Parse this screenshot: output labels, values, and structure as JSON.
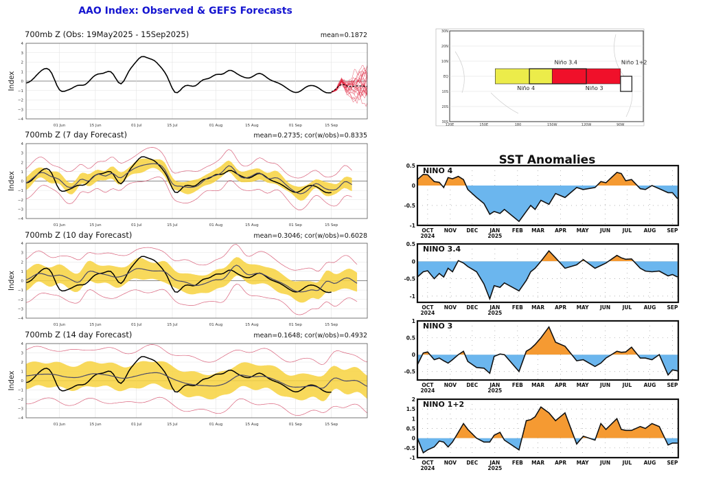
{
  "title": "AAO Index: Observed & GEFS Forecasts",
  "colors": {
    "title": "#1515d0",
    "observed": "#000000",
    "forecast_mean": "#4a4a6a",
    "ensemble": "#e0203a",
    "band": "#f7d23e",
    "envelope": "#d9607a",
    "sst_warm": "#f59a32",
    "sst_cool": "#6bb6ee",
    "nino4_box": "#ecec4a",
    "nino3_box": "#f0102a"
  },
  "chart_data": [
    {
      "type": "line",
      "title": "700mb Z (Obs: 19May2025 - 15Sep2025)",
      "stat": "mean=0.1872",
      "ylabel": "Index",
      "xlim": [
        "2025-05-19",
        "2025-09-29"
      ],
      "ylim": [
        -4,
        4
      ],
      "yticks": [
        4,
        3,
        2,
        1,
        0,
        -1,
        -2,
        -3,
        -4
      ],
      "xticks": [
        {
          "date": "2025-06-01",
          "label": "01 Jun"
        },
        {
          "date": "2025-06-15",
          "label": "15 Jun"
        },
        {
          "date": "2025-07-01",
          "label": "01 Jul"
        },
        {
          "date": "2025-07-15",
          "label": "15 Jul"
        },
        {
          "date": "2025-08-01",
          "label": "01 Aug"
        },
        {
          "date": "2025-08-15",
          "label": "15 Aug"
        },
        {
          "date": "2025-09-01",
          "label": "01 Sep"
        },
        {
          "date": "2025-09-15",
          "label": "15 Sep"
        }
      ],
      "grid": true,
      "observed": [
        [
          "2025-05-19",
          -0.2
        ],
        [
          "2025-05-20",
          -0.3
        ],
        [
          "2025-05-24",
          0.9
        ],
        [
          "2025-05-26",
          1.4
        ],
        [
          "2025-05-28",
          1.4
        ],
        [
          "2025-05-29",
          1.1
        ],
        [
          "2025-05-31",
          -0.6
        ],
        [
          "2025-06-01",
          -1.3
        ],
        [
          "2025-06-05",
          -0.85
        ],
        [
          "2025-06-06",
          -0.85
        ],
        [
          "2025-06-08",
          -0.3
        ],
        [
          "2025-06-11",
          -0.6
        ],
        [
          "2025-06-13",
          0.2
        ],
        [
          "2025-06-16",
          0.9
        ],
        [
          "2025-06-17",
          0.75
        ],
        [
          "2025-06-18",
          0.7
        ],
        [
          "2025-06-21",
          1.3
        ],
        [
          "2025-06-23",
          0.3
        ],
        [
          "2025-06-25",
          -0.85
        ],
        [
          "2025-06-28",
          1.2
        ],
        [
          "2025-07-01",
          2.0
        ],
        [
          "2025-07-03",
          2.9
        ],
        [
          "2025-07-05",
          2.4
        ],
        [
          "2025-07-08",
          2.3
        ],
        [
          "2025-07-11",
          1.3
        ],
        [
          "2025-07-13",
          0.7
        ],
        [
          "2025-07-16",
          -1.7
        ],
        [
          "2025-07-20",
          -0.3
        ],
        [
          "2025-07-24",
          -0.7
        ],
        [
          "2025-07-27",
          0.35
        ],
        [
          "2025-07-29",
          0.1
        ],
        [
          "2025-08-01",
          0.85
        ],
        [
          "2025-08-04",
          0.55
        ],
        [
          "2025-08-06",
          1.4
        ],
        [
          "2025-08-10",
          0.6
        ],
        [
          "2025-08-14",
          0.2
        ],
        [
          "2025-08-18",
          1.0
        ],
        [
          "2025-08-22",
          0.1
        ],
        [
          "2025-08-26",
          -0.25
        ],
        [
          "2025-08-31",
          -1.2
        ],
        [
          "2025-09-02",
          -1.3
        ],
        [
          "2025-09-06",
          -0.4
        ],
        [
          "2025-09-09",
          -0.5
        ],
        [
          "2025-09-13",
          -1.35
        ],
        [
          "2025-09-15",
          -1.2
        ]
      ],
      "ensemble_mean": [
        [
          "2025-09-15",
          -1.2
        ],
        [
          "2025-09-17",
          -0.9
        ],
        [
          "2025-09-19",
          0.0
        ],
        [
          "2025-09-21",
          -0.7
        ],
        [
          "2025-09-24",
          -0.5
        ],
        [
          "2025-09-27",
          -0.5
        ],
        [
          "2025-09-29",
          -0.6
        ]
      ],
      "ensemble_spread": 2.0
    },
    {
      "type": "line",
      "title": "700mb Z (7 day Forecast)",
      "stat": "mean=0.2735; cor(w/obs)=0.8335",
      "ylabel": "Index",
      "xlim": [
        "2025-05-19",
        "2025-09-29"
      ],
      "ylim": [
        -4,
        4
      ],
      "band_halfwidth": 0.6,
      "envelope_halfwidth": 1.5,
      "forecast_mean": [
        [
          "2025-05-19",
          -0.3
        ],
        [
          "2025-05-25",
          1.1
        ],
        [
          "2025-05-29",
          0.4
        ],
        [
          "2025-06-01",
          0.3
        ],
        [
          "2025-06-04",
          -0.8
        ],
        [
          "2025-06-08",
          -0.5
        ],
        [
          "2025-06-09",
          0.7
        ],
        [
          "2025-06-12",
          -0.3
        ],
        [
          "2025-06-16",
          1.0
        ],
        [
          "2025-06-19",
          0.3
        ],
        [
          "2025-06-22",
          1.2
        ],
        [
          "2025-06-24",
          0.0
        ],
        [
          "2025-06-27",
          0.8
        ],
        [
          "2025-07-01",
          1.5
        ],
        [
          "2025-07-05",
          1.8
        ],
        [
          "2025-07-09",
          1.9
        ],
        [
          "2025-07-12",
          1.5
        ],
        [
          "2025-07-15",
          -0.6
        ],
        [
          "2025-07-18",
          -0.5
        ],
        [
          "2025-07-21",
          -0.7
        ],
        [
          "2025-07-25",
          -0.6
        ],
        [
          "2025-07-28",
          0.3
        ],
        [
          "2025-08-01",
          0.6
        ],
        [
          "2025-08-04",
          0.9
        ],
        [
          "2025-08-06",
          2.1
        ],
        [
          "2025-08-08",
          1.2
        ],
        [
          "2025-08-11",
          0.2
        ],
        [
          "2025-08-15",
          0.5
        ],
        [
          "2025-08-18",
          1.1
        ],
        [
          "2025-08-21",
          0.1
        ],
        [
          "2025-08-25",
          0.5
        ],
        [
          "2025-08-29",
          -0.6
        ],
        [
          "2025-09-01",
          -1.2
        ],
        [
          "2025-09-03",
          -1.5
        ],
        [
          "2025-09-06",
          -1.0
        ],
        [
          "2025-09-09",
          0.0
        ],
        [
          "2025-09-12",
          -0.8
        ],
        [
          "2025-09-15",
          -1.0
        ],
        [
          "2025-09-18",
          -0.9
        ],
        [
          "2025-09-20",
          0.3
        ],
        [
          "2025-09-23",
          -0.5
        ]
      ]
    },
    {
      "type": "line",
      "title": "700mb Z (10 day Forecast)",
      "stat": "mean=0.3046; cor(w/obs)=0.6028",
      "ylabel": "Index",
      "xlim": [
        "2025-05-19",
        "2025-09-29"
      ],
      "ylim": [
        -4,
        4
      ],
      "band_halfwidth": 1.0,
      "envelope_halfwidth": 2.2,
      "forecast_mean": [
        [
          "2025-05-19",
          0.0
        ],
        [
          "2025-05-24",
          0.9
        ],
        [
          "2025-05-29",
          0.4
        ],
        [
          "2025-06-01",
          0.7
        ],
        [
          "2025-06-05",
          0.2
        ],
        [
          "2025-06-09",
          -0.4
        ],
        [
          "2025-06-12",
          1.2
        ],
        [
          "2025-06-16",
          0.8
        ],
        [
          "2025-06-20",
          0.6
        ],
        [
          "2025-06-23",
          0.3
        ],
        [
          "2025-06-27",
          0.6
        ],
        [
          "2025-07-01",
          1.4
        ],
        [
          "2025-07-04",
          1.2
        ],
        [
          "2025-07-08",
          1.0
        ],
        [
          "2025-07-12",
          1.1
        ],
        [
          "2025-07-16",
          0.0
        ],
        [
          "2025-07-20",
          -0.1
        ],
        [
          "2025-07-24",
          -0.6
        ],
        [
          "2025-07-28",
          -0.3
        ],
        [
          "2025-08-01",
          0.2
        ],
        [
          "2025-08-04",
          0.0
        ],
        [
          "2025-08-09",
          2.0
        ],
        [
          "2025-08-13",
          0.5
        ],
        [
          "2025-08-18",
          0.9
        ],
        [
          "2025-08-22",
          0.3
        ],
        [
          "2025-08-28",
          -0.4
        ],
        [
          "2025-09-01",
          -1.2
        ],
        [
          "2025-09-05",
          -1.2
        ],
        [
          "2025-09-08",
          -0.8
        ],
        [
          "2025-09-10",
          -1.4
        ],
        [
          "2025-09-13",
          0.3
        ],
        [
          "2025-09-16",
          -0.5
        ],
        [
          "2025-09-20",
          0.3
        ],
        [
          "2025-09-22",
          0.4
        ],
        [
          "2025-09-25",
          -0.4
        ]
      ]
    },
    {
      "type": "line",
      "title": "700mb Z (14 day Forecast)",
      "stat": "mean=0.1648; cor(w/obs)=0.4932",
      "ylabel": "Index",
      "xlim": [
        "2025-05-19",
        "2025-09-29"
      ],
      "ylim": [
        -4,
        4
      ],
      "band_halfwidth": 1.3,
      "envelope_halfwidth": 2.8,
      "forecast_mean": [
        [
          "2025-05-19",
          0.5
        ],
        [
          "2025-05-24",
          0.7
        ],
        [
          "2025-05-30",
          0.7
        ],
        [
          "2025-06-03",
          0.4
        ],
        [
          "2025-06-08",
          0.3
        ],
        [
          "2025-06-14",
          0.8
        ],
        [
          "2025-06-20",
          0.6
        ],
        [
          "2025-06-26",
          0.2
        ],
        [
          "2025-07-01",
          0.5
        ],
        [
          "2025-07-05",
          0.8
        ],
        [
          "2025-07-10",
          0.9
        ],
        [
          "2025-07-15",
          0.2
        ],
        [
          "2025-07-20",
          -0.3
        ],
        [
          "2025-07-25",
          -0.5
        ],
        [
          "2025-08-01",
          -0.6
        ],
        [
          "2025-08-05",
          -0.3
        ],
        [
          "2025-08-10",
          0.7
        ],
        [
          "2025-08-15",
          0.4
        ],
        [
          "2025-08-20",
          0.5
        ],
        [
          "2025-08-25",
          0.0
        ],
        [
          "2025-08-30",
          -0.7
        ],
        [
          "2025-09-03",
          -0.7
        ],
        [
          "2025-09-08",
          -0.5
        ],
        [
          "2025-09-12",
          -1.0
        ],
        [
          "2025-09-16",
          0.5
        ],
        [
          "2025-09-20",
          -0.1
        ],
        [
          "2025-09-25",
          0.1
        ],
        [
          "2025-09-29",
          -0.7
        ]
      ]
    },
    {
      "type": "map",
      "lat_labels": [
        "30N",
        "20N",
        "10N",
        "EQ",
        "10S",
        "20S",
        "30S"
      ],
      "lon_labels": [
        "120E",
        "150E",
        "180",
        "150W",
        "120W",
        "90W"
      ],
      "regions": [
        {
          "name": "Niño 4"
        },
        {
          "name": "Niño 3.4"
        },
        {
          "name": "Niño 3"
        },
        {
          "name": "Niño 1+2"
        }
      ]
    },
    {
      "type": "area",
      "title": "SST Anomalies",
      "xlim": [
        "2024-09-17",
        "2025-09-09"
      ],
      "xticks": [
        {
          "date": "2024-10-01",
          "label": "OCT",
          "year": "2024"
        },
        {
          "date": "2024-11-01",
          "label": "NOV"
        },
        {
          "date": "2024-12-01",
          "label": "DEC"
        },
        {
          "date": "2025-01-01",
          "label": "JAN",
          "year": "2025"
        },
        {
          "date": "2025-02-01",
          "label": "FEB"
        },
        {
          "date": "2025-03-01",
          "label": "MAR"
        },
        {
          "date": "2025-04-01",
          "label": "APR"
        },
        {
          "date": "2025-05-01",
          "label": "MAY"
        },
        {
          "date": "2025-06-01",
          "label": "JUN"
        },
        {
          "date": "2025-07-01",
          "label": "JUL"
        },
        {
          "date": "2025-08-01",
          "label": "AUG"
        },
        {
          "date": "2025-09-01",
          "label": "SEP"
        }
      ],
      "dates": [
        "2024-09-17",
        "2024-09-25",
        "2024-10-01",
        "2024-10-10",
        "2024-10-17",
        "2024-10-23",
        "2024-10-29",
        "2024-11-04",
        "2024-11-12",
        "2024-11-19",
        "2024-11-25",
        "2024-12-07",
        "2024-12-17",
        "2024-12-25",
        "2024-12-31",
        "2025-01-08",
        "2025-01-14",
        "2025-02-03",
        "2025-02-13",
        "2025-02-19",
        "2025-02-25",
        "2025-03-05",
        "2025-03-16",
        "2025-03-25",
        "2025-04-07",
        "2025-04-23",
        "2025-05-02",
        "2025-05-18",
        "2025-05-26",
        "2025-06-02",
        "2025-06-17",
        "2025-06-23",
        "2025-06-29",
        "2025-07-07",
        "2025-07-19",
        "2025-07-26",
        "2025-08-04",
        "2025-08-14",
        "2025-08-26",
        "2025-09-01",
        "2025-09-08"
      ],
      "series": [
        {
          "name": "NINO 4",
          "ylim": [
            -1,
            0.5
          ],
          "yticks": [
            {
              "v": 0.5,
              "l": "0.5"
            },
            {
              "v": 0,
              "l": "0"
            },
            {
              "v": -0.5,
              "l": "-0.5"
            },
            {
              "v": -1,
              "l": "-1"
            }
          ],
          "values": [
            0.15,
            0.28,
            0.27,
            0.1,
            0.08,
            -0.05,
            0.2,
            0.17,
            0.23,
            0.15,
            -0.1,
            -0.3,
            -0.45,
            -0.72,
            -0.65,
            -0.7,
            -0.6,
            -0.9,
            -0.65,
            -0.5,
            -0.6,
            -0.37,
            -0.47,
            -0.2,
            -0.3,
            -0.05,
            -0.1,
            -0.05,
            0.1,
            0.07,
            0.33,
            0.3,
            0.12,
            0.15,
            -0.08,
            -0.1,
            0.0,
            -0.08,
            -0.18,
            -0.18,
            -0.33
          ]
        },
        {
          "name": "NINO 3.4",
          "ylim": [
            -1.18,
            0.5
          ],
          "yticks": [
            {
              "v": 0.5,
              "l": "0.5"
            },
            {
              "v": 0,
              "l": "0"
            },
            {
              "v": -0.5,
              "l": "-0.5"
            },
            {
              "v": -1,
              "l": "-1"
            }
          ],
          "values": [
            -0.45,
            -0.3,
            -0.27,
            -0.5,
            -0.35,
            -0.45,
            -0.2,
            -0.3,
            0.02,
            -0.05,
            -0.15,
            -0.3,
            -0.65,
            -1.08,
            -0.7,
            -0.75,
            -0.62,
            -0.85,
            -0.55,
            -0.3,
            -0.2,
            0.0,
            0.3,
            0.1,
            -0.2,
            -0.1,
            0.05,
            -0.2,
            -0.12,
            -0.05,
            0.17,
            0.1,
            0.06,
            0.07,
            -0.2,
            -0.28,
            -0.3,
            -0.28,
            -0.42,
            -0.38,
            -0.45
          ]
        },
        {
          "name": "NINO 3",
          "ylim": [
            -0.75,
            1
          ],
          "yticks": [
            {
              "v": 1,
              "l": "1"
            },
            {
              "v": 0.5,
              "l": "0.5"
            },
            {
              "v": 0,
              "l": "0"
            },
            {
              "v": -0.5,
              "l": "-0.5"
            }
          ],
          "values": [
            -0.3,
            0.05,
            0.08,
            -0.15,
            -0.1,
            -0.18,
            -0.25,
            -0.15,
            0.0,
            0.1,
            -0.2,
            -0.38,
            -0.4,
            -0.55,
            -0.05,
            0.02,
            0.0,
            -0.5,
            0.1,
            0.18,
            0.3,
            0.5,
            0.82,
            0.37,
            0.25,
            -0.18,
            -0.15,
            -0.35,
            -0.25,
            -0.1,
            0.1,
            0.07,
            0.08,
            0.22,
            -0.1,
            -0.1,
            -0.15,
            0.0,
            -0.6,
            -0.45,
            -0.48
          ]
        },
        {
          "name": "NINO 1+2",
          "ylim": [
            -1,
            2
          ],
          "yticks": [
            {
              "v": 2,
              "l": "2"
            },
            {
              "v": 1.5,
              "l": "1.5"
            },
            {
              "v": 1,
              "l": "1"
            },
            {
              "v": 0.5,
              "l": "0.5"
            },
            {
              "v": 0,
              "l": "0"
            },
            {
              "v": -0.5,
              "l": "-0.5"
            },
            {
              "v": -1,
              "l": "-1"
            }
          ],
          "values": [
            0.0,
            -0.75,
            -0.6,
            -0.45,
            -0.15,
            -0.2,
            -0.45,
            -0.2,
            0.3,
            0.75,
            0.45,
            0.0,
            -0.2,
            -0.2,
            0.15,
            0.3,
            -0.1,
            -0.6,
            0.9,
            0.95,
            1.1,
            1.6,
            1.3,
            0.9,
            1.3,
            -0.3,
            0.1,
            -0.1,
            0.75,
            0.45,
            1.0,
            0.45,
            0.4,
            0.4,
            0.6,
            0.5,
            0.75,
            0.6,
            -0.35,
            -0.25,
            -0.25
          ]
        }
      ]
    }
  ]
}
